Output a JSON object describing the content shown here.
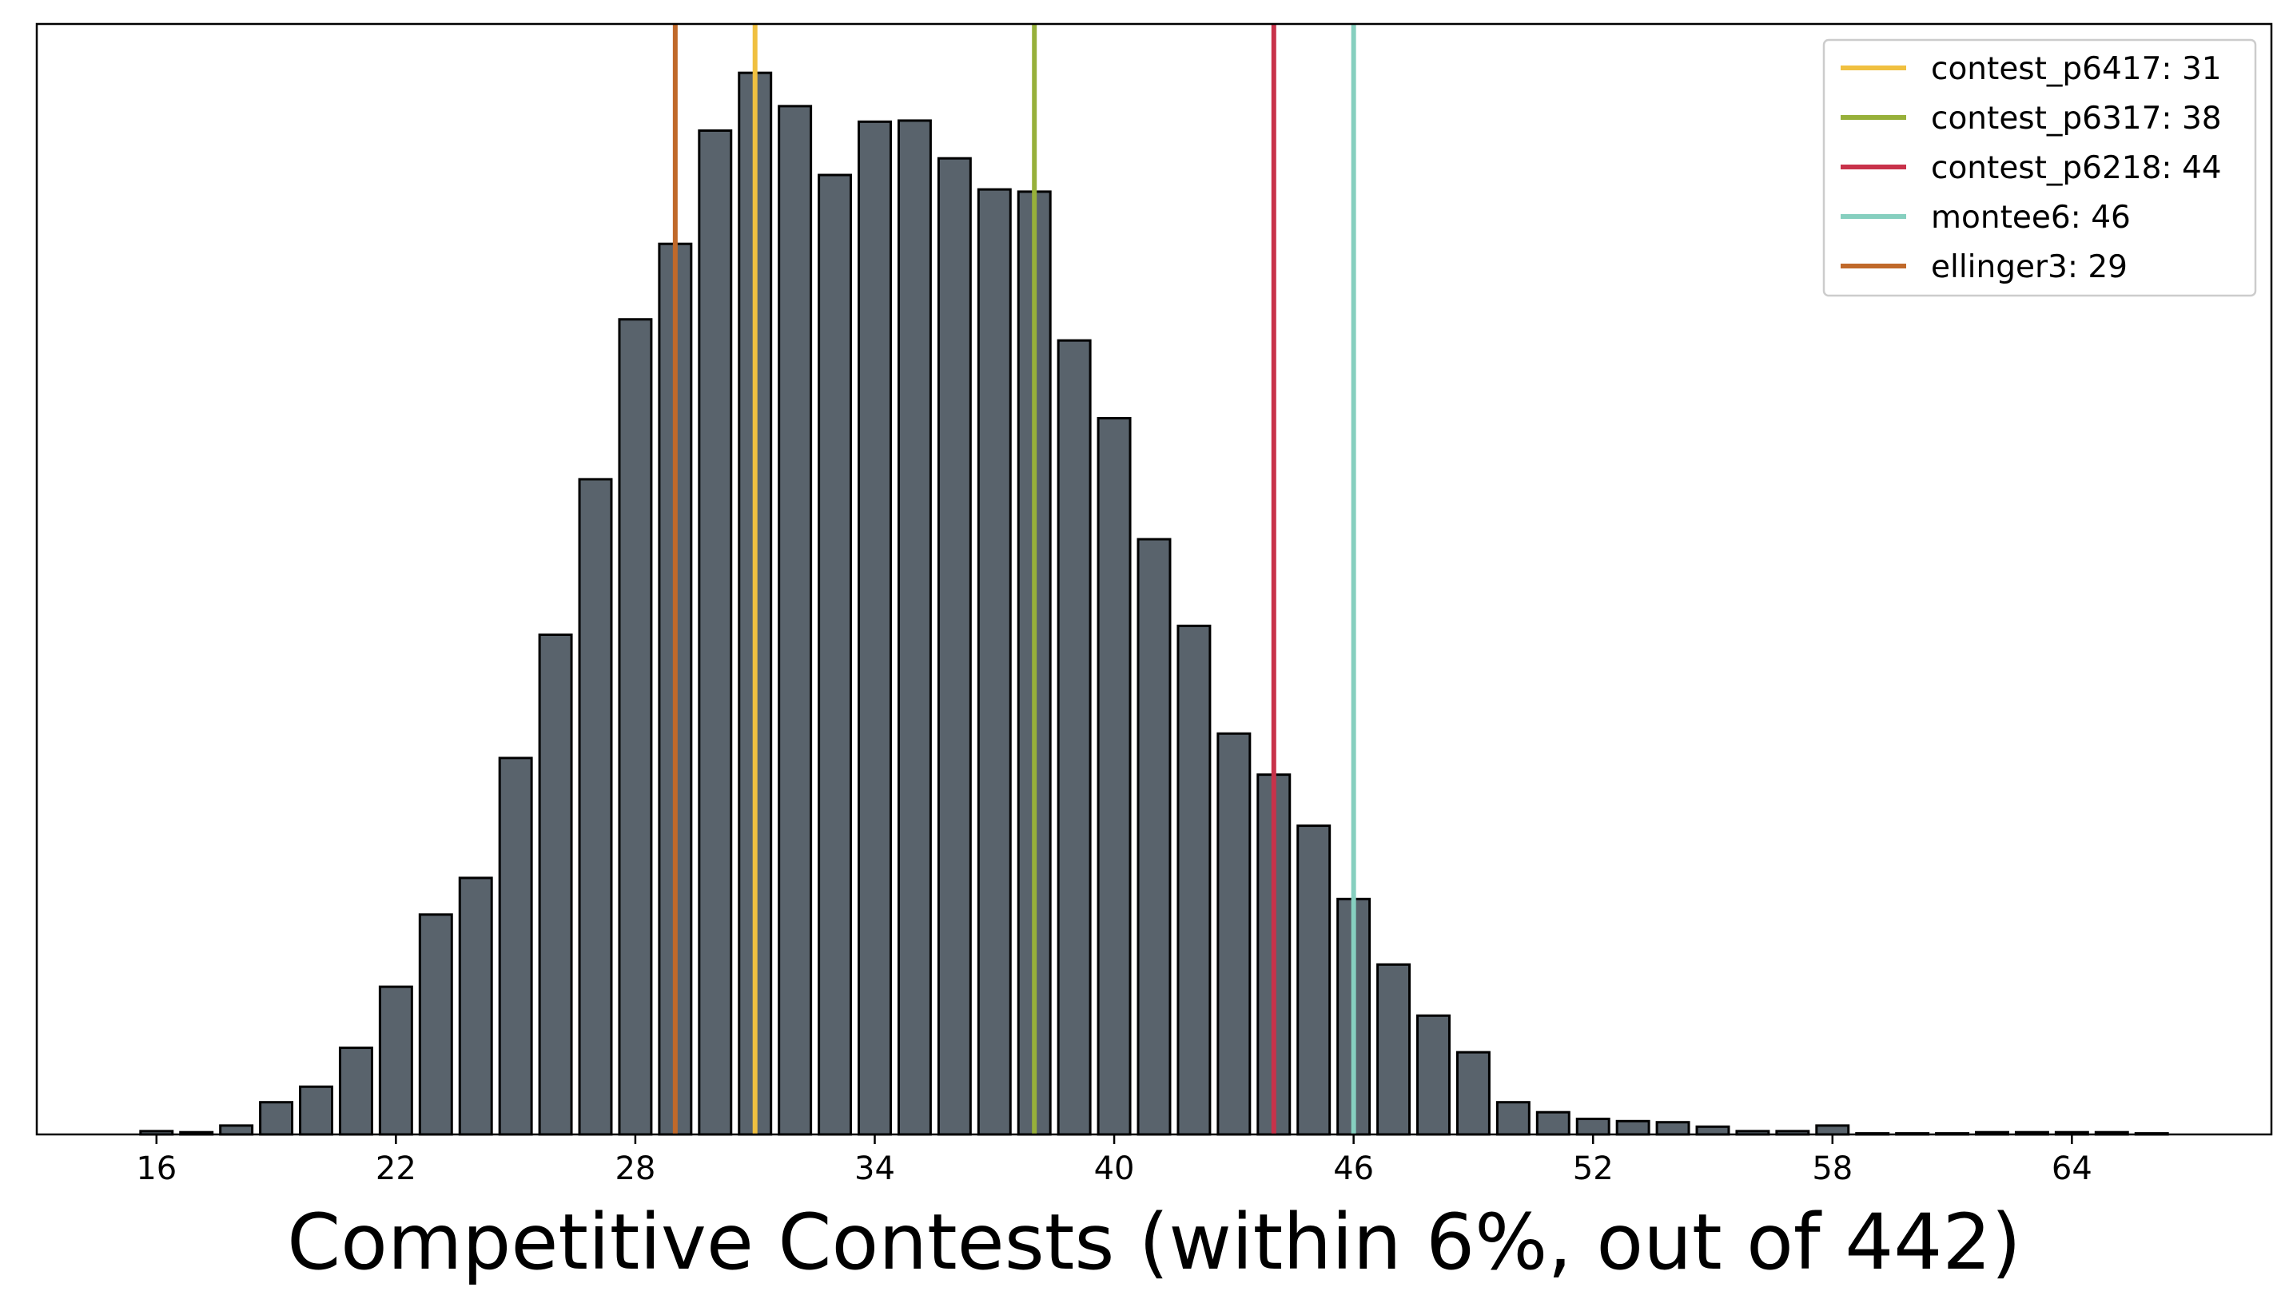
{
  "chart_data": {
    "type": "bar",
    "title": "",
    "xlabel": "Competitive Contests (within 6%, out of 442)",
    "ylabel": "",
    "xlim": [
      13,
      69
    ],
    "ylim": [
      0,
      100
    ],
    "grid": false,
    "legend_position": "top-right",
    "bar_color": "#59636c",
    "bar_edge_color": "#000000",
    "x_ticks": [
      16,
      22,
      28,
      34,
      40,
      46,
      52,
      58,
      64
    ],
    "x_tick_labels": [
      "16",
      "22",
      "28",
      "34",
      "40",
      "46",
      "52",
      "58",
      "64"
    ],
    "x": [
      16,
      17,
      18,
      19,
      20,
      21,
      22,
      23,
      24,
      25,
      26,
      27,
      28,
      29,
      30,
      31,
      32,
      33,
      34,
      35,
      36,
      37,
      38,
      39,
      40,
      41,
      42,
      43,
      44,
      45,
      46,
      47,
      48,
      49,
      50,
      51,
      52,
      53,
      54,
      55,
      56,
      57,
      58,
      59,
      60,
      61,
      62,
      63,
      64,
      65,
      66
    ],
    "values": [
      0.3,
      0.2,
      0.8,
      2.9,
      4.3,
      7.8,
      13.3,
      19.8,
      23.1,
      33.9,
      45.0,
      59.0,
      73.4,
      80.2,
      90.4,
      95.6,
      92.6,
      86.4,
      91.2,
      91.3,
      87.9,
      85.1,
      84.9,
      71.5,
      64.5,
      53.6,
      45.8,
      36.1,
      32.4,
      27.8,
      21.2,
      15.3,
      10.7,
      7.4,
      2.9,
      2.0,
      1.4,
      1.2,
      1.1,
      0.7,
      0.3,
      0.3,
      0.8,
      0.1,
      0.1,
      0.1,
      0.2,
      0.2,
      0.2,
      0.2,
      0.1
    ],
    "markers": [
      {
        "name": "contest_p6417: 31",
        "x": 31,
        "color": "#f0c040"
      },
      {
        "name": "contest_p6317: 38",
        "x": 38,
        "color": "#97b03a"
      },
      {
        "name": "contest_p6218: 44",
        "x": 44,
        "color": "#c8324a"
      },
      {
        "name": "montee6: 46",
        "x": 46,
        "color": "#86cfbf"
      },
      {
        "name": "ellinger3: 29",
        "x": 29,
        "color": "#c0692a"
      }
    ]
  }
}
